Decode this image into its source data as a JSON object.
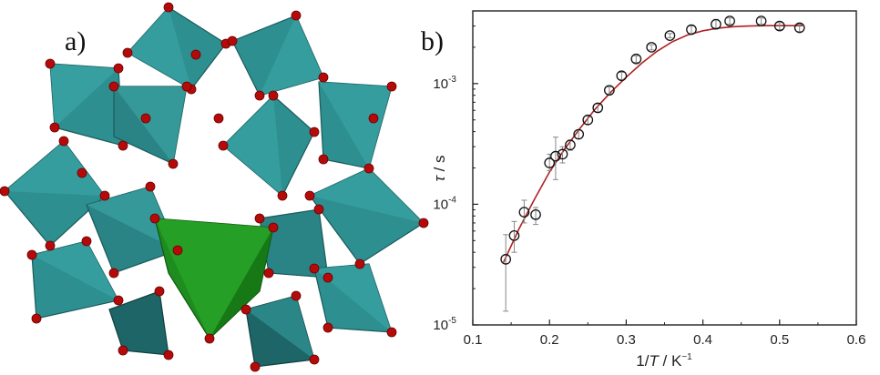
{
  "panels": {
    "a_label": "a)",
    "b_label": "b)"
  },
  "colors": {
    "polyhedron_teal": "#2e8f90",
    "polyhedron_dark": "#1d6566",
    "central_green": "#1e8c1e",
    "oxygen_red": "#b50a0a",
    "fit_line": "#b02020"
  },
  "chart_data": {
    "type": "scatter",
    "title": "",
    "xlabel": "1/T / K⁻¹",
    "xlabel_parts": {
      "pre": "1/",
      "italic": "T",
      "post": " / K",
      "sup": "−1"
    },
    "ylabel": "τ / s",
    "ylabel_parts": {
      "italic": "τ",
      "post": " / s"
    },
    "xlim": [
      0.1,
      0.6
    ],
    "ylim": [
      1e-05,
      0.004
    ],
    "yscale": "log",
    "x_ticks": [
      "0.1",
      "0.2",
      "0.3",
      "0.4",
      "0.5",
      "0.6"
    ],
    "y_ticks": [
      {
        "base": "10",
        "exp": "-5",
        "value": 1e-05
      },
      {
        "base": "10",
        "exp": "-4",
        "value": 0.0001
      },
      {
        "base": "10",
        "exp": "-3",
        "value": 0.001
      }
    ],
    "grid": false,
    "series": [
      {
        "marker": "open-circle",
        "x": [
          0.143,
          0.154,
          0.167,
          0.182,
          0.2,
          0.208,
          0.217,
          0.227,
          0.238,
          0.25,
          0.263,
          0.278,
          0.294,
          0.313,
          0.333,
          0.357,
          0.385,
          0.417,
          0.435,
          0.476,
          0.5,
          0.526
        ],
        "y": [
          3.5e-05,
          5.5e-05,
          8.6e-05,
          8.2e-05,
          0.00022,
          0.00025,
          0.00026,
          0.00031,
          0.00038,
          0.0005,
          0.00063,
          0.00088,
          0.00116,
          0.0016,
          0.002,
          0.0025,
          0.0028,
          0.0031,
          0.0033,
          0.0033,
          0.003,
          0.0029
        ],
        "err_low": [
          1.3e-05,
          4e-05,
          7e-05,
          6.8e-05,
          0.00019,
          0.00016,
          0.00022,
          0.00028,
          0.00035,
          0.00046,
          0.00058,
          0.00082,
          0.00108,
          0.0015,
          0.0019,
          0.0024,
          0.0026,
          0.0029,
          0.0031,
          0.0031,
          0.0028,
          0.0027
        ],
        "err_high": [
          5.6e-05,
          7.2e-05,
          0.000108,
          9.4e-05,
          0.00026,
          0.00036,
          0.0003,
          0.00034,
          0.00041,
          0.00054,
          0.00068,
          0.00094,
          0.00124,
          0.0017,
          0.0021,
          0.0026,
          0.003,
          0.0034,
          0.0035,
          0.0035,
          0.0032,
          0.0031
        ]
      },
      {
        "marker": "line",
        "x": [
          0.14,
          0.16,
          0.18,
          0.2,
          0.22,
          0.24,
          0.26,
          0.28,
          0.3,
          0.32,
          0.34,
          0.36,
          0.38,
          0.4,
          0.42,
          0.44,
          0.46,
          0.48,
          0.5,
          0.53
        ],
        "y": [
          3.3e-05,
          6.2e-05,
          0.000109,
          0.000185,
          0.000288,
          0.000428,
          0.00062,
          0.00085,
          0.00113,
          0.00147,
          0.00185,
          0.00222,
          0.00253,
          0.00274,
          0.00288,
          0.00296,
          0.003,
          0.00302,
          0.00302,
          0.00302
        ]
      }
    ]
  }
}
